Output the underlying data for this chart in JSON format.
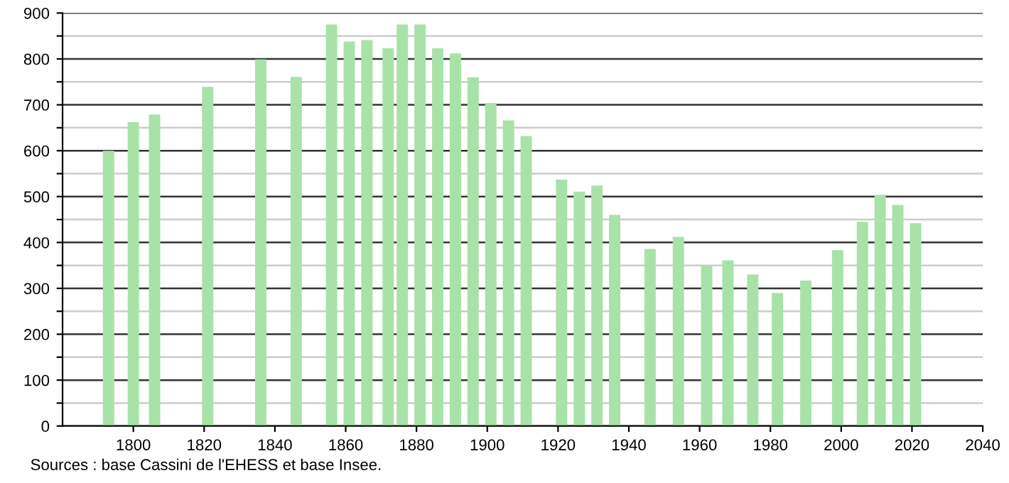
{
  "chart_data": {
    "type": "bar",
    "x": [
      1793,
      1800,
      1806,
      1821,
      1836,
      1846,
      1856,
      1861,
      1866,
      1872,
      1876,
      1881,
      1886,
      1891,
      1896,
      1901,
      1906,
      1911,
      1921,
      1926,
      1931,
      1936,
      1946,
      1954,
      1962,
      1968,
      1975,
      1982,
      1990,
      1999,
      2006,
      2011,
      2016,
      2021
    ],
    "values": [
      600,
      662,
      679,
      739,
      799,
      761,
      875,
      838,
      841,
      823,
      875,
      875,
      823,
      812,
      760,
      704,
      666,
      632,
      537,
      511,
      524,
      460,
      386,
      412,
      351,
      361,
      330,
      290,
      317,
      383,
      445,
      504,
      482,
      442
    ],
    "color": "#a8e2a8",
    "xlim": [
      1780,
      2040
    ],
    "xticks": [
      1800,
      1820,
      1840,
      1860,
      1880,
      1900,
      1920,
      1940,
      1960,
      1980,
      2000,
      2020,
      2040
    ],
    "ylim": [
      0,
      900
    ],
    "yticks": [
      0,
      {
        "value": 50,
        "label": null
      },
      100,
      {
        "value": 150,
        "label": null
      },
      200,
      {
        "value": 250,
        "label": null
      },
      300,
      {
        "value": 350,
        "label": null
      },
      400,
      {
        "value": 450,
        "label": null
      },
      500,
      {
        "value": 550,
        "label": null
      },
      600,
      {
        "value": 650,
        "label": null
      },
      700,
      {
        "value": 750,
        "label": null
      },
      800,
      {
        "value": 850,
        "label": null
      },
      900
    ],
    "grid": "y",
    "annotations": [
      "Sources : base Cassini de l'EHESS et base Insee."
    ]
  }
}
